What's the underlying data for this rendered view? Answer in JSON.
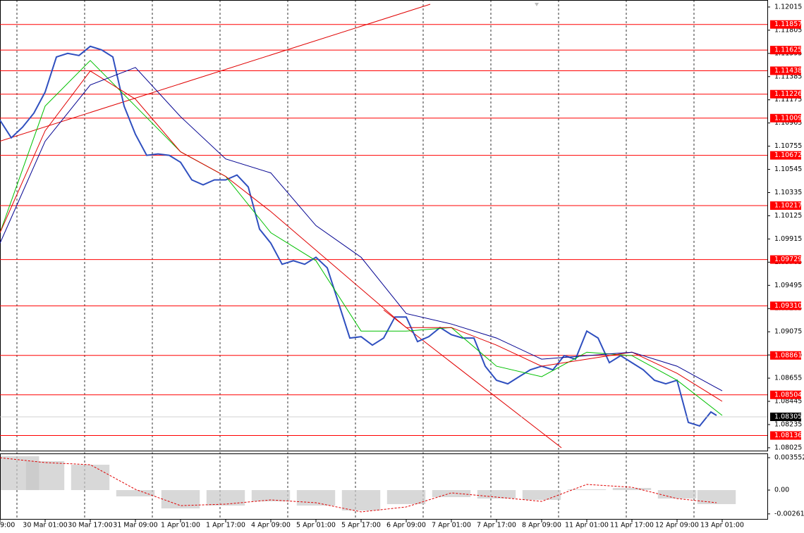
{
  "chart_data": [
    {
      "type": "line",
      "xlim": [
        0,
        272
      ],
      "ylim": [
        1.07999,
        1.12072
      ],
      "yticks": [
        1.12015,
        1.11805,
        1.11595,
        1.11385,
        1.11175,
        1.10965,
        1.10755,
        1.10545,
        1.10335,
        1.10125,
        1.09915,
        1.09705,
        1.09495,
        1.09285,
        1.09075,
        1.08865,
        1.08655,
        1.08445,
        1.08235,
        1.08025
      ],
      "xticks": [
        {
          "value": 0,
          "label": "9:00"
        },
        {
          "value": 16,
          "label": "30 Mar 01:00"
        },
        {
          "value": 32,
          "label": "30 Mar 17:00"
        },
        {
          "value": 48,
          "label": "31 Mar 09:00"
        },
        {
          "value": 64,
          "label": "1 Apr 01:00"
        },
        {
          "value": 80,
          "label": "1 Apr 17:00"
        },
        {
          "value": 96,
          "label": "4 Apr 09:00"
        },
        {
          "value": 112,
          "label": "5 Apr 01:00"
        },
        {
          "value": 128,
          "label": "5 Apr 17:00"
        },
        {
          "value": 144,
          "label": "6 Apr 09:00"
        },
        {
          "value": 160,
          "label": "7 Apr 01:00"
        },
        {
          "value": 176,
          "label": "7 Apr 17:00"
        },
        {
          "value": 192,
          "label": "8 Apr 09:00"
        },
        {
          "value": 208,
          "label": "11 Apr 01:00"
        },
        {
          "value": 224,
          "label": "11 Apr 17:00"
        },
        {
          "value": 240,
          "label": "12 Apr 09:00"
        },
        {
          "value": 256,
          "label": "13 Apr 01:00"
        }
      ],
      "vgrid": [
        6,
        30,
        54,
        78,
        102,
        126,
        150,
        174,
        198,
        222,
        246
      ],
      "series": [
        {
          "color": "#2f4fbf",
          "width": 2,
          "x": [
            0,
            4,
            8,
            12,
            16,
            20,
            24,
            28,
            32,
            36,
            40,
            44,
            48,
            52,
            56,
            60,
            64,
            68,
            72,
            76,
            80,
            84,
            88,
            92,
            96,
            100,
            104,
            108,
            112,
            116,
            120,
            124,
            128,
            132,
            136,
            140,
            144,
            148,
            152,
            156,
            160,
            164,
            168,
            172,
            176,
            180,
            184,
            188,
            192,
            196,
            200,
            204,
            208,
            212,
            216,
            220,
            224,
            228,
            232,
            236,
            240,
            244,
            248,
            252,
            254
          ],
          "values": [
            1.1099,
            1.10831,
            1.10927,
            1.11054,
            1.11245,
            1.11563,
            1.11595,
            1.11576,
            1.11659,
            1.11627,
            1.11563,
            1.11118,
            1.10863,
            1.10672,
            1.10685,
            1.10672,
            1.10609,
            1.1045,
            1.10405,
            1.1045,
            1.1045,
            1.10494,
            1.10386,
            1.10004,
            1.09877,
            1.09686,
            1.09718,
            1.09686,
            1.09749,
            1.09654,
            1.09336,
            1.09018,
            1.0903,
            1.08954,
            1.09018,
            1.09209,
            1.09209,
            1.08986,
            1.0903,
            1.09113,
            1.09049,
            1.09018,
            1.09018,
            1.08763,
            1.08636,
            1.08604,
            1.08668,
            1.08731,
            1.08763,
            1.08731,
            1.08859,
            1.08827,
            1.09081,
            1.09018,
            1.08795,
            1.08859,
            1.08795,
            1.08731,
            1.08636,
            1.08604,
            1.08636,
            1.08254,
            1.08222,
            1.08349,
            1.08318
          ]
        },
        {
          "color": "#00c000",
          "width": 1,
          "x": [
            0,
            16,
            32,
            48,
            64,
            80,
            96,
            112,
            128,
            144,
            160,
            176,
            192,
            208,
            224,
            240,
            256
          ],
          "values": [
            1.09972,
            1.11118,
            1.11531,
            1.11118,
            1.10704,
            1.10481,
            1.09972,
            1.09718,
            1.09081,
            1.09081,
            1.09113,
            1.08763,
            1.08668,
            1.0889,
            1.08859,
            1.08636,
            1.08318
          ]
        },
        {
          "color": "#e00000",
          "width": 1,
          "x": [
            0,
            16,
            32,
            48,
            64,
            80,
            96,
            112,
            128,
            144,
            160,
            176,
            192,
            208,
            224,
            240,
            256
          ],
          "values": [
            1.09972,
            1.10895,
            1.11436,
            1.11181,
            1.10704,
            1.10481,
            1.10163,
            1.09813,
            1.09463,
            1.09113,
            1.09113,
            1.08954,
            1.08763,
            1.08827,
            1.0889,
            1.08699,
            1.08445
          ]
        },
        {
          "color": "#000090",
          "width": 1,
          "x": [
            0,
            16,
            32,
            48,
            64,
            80,
            96,
            112,
            128,
            144,
            160,
            176,
            192,
            208,
            224,
            240,
            256
          ],
          "values": [
            1.09877,
            1.108,
            1.11309,
            1.11468,
            1.11022,
            1.1064,
            1.10513,
            1.10036,
            1.09749,
            1.0924,
            1.09145,
            1.09018,
            1.08827,
            1.08859,
            1.0889,
            1.08763,
            1.0854
          ]
        }
      ],
      "trendlines": [
        {
          "color": "#e00000",
          "x": [
            0,
            152.5
          ],
          "values": [
            1.108,
            1.1204
          ]
        },
        {
          "color": "#e00000",
          "x": [
            136,
            199
          ],
          "values": [
            1.09272,
            1.08025
          ]
        }
      ],
      "levels": {
        "color": "#ff0000",
        "values": [
          1.11857,
          1.11625,
          1.11438,
          1.11226,
          1.11009,
          1.10672,
          1.10217,
          1.09729,
          1.0931,
          1.08861,
          1.08504,
          1.08136
        ],
        "value_labels": [
          "1.11857",
          "1.11625",
          "1.11438",
          "1.11226",
          "1.11009",
          "1.10672",
          "1.10217",
          "1.09729",
          "1.09310",
          "1.08861",
          "1.08504",
          "1.08136"
        ]
      },
      "last_price": 1.08305
    },
    {
      "type": "bar",
      "xlim": [
        0,
        272
      ],
      "ylim": [
        -0.00324,
        0.00394
      ],
      "yticks": [
        0.003552,
        {
          "value": 0,
          "label": "0.00"
        },
        -0.002611
      ],
      "x": [
        0,
        16,
        32,
        48,
        64,
        80,
        96,
        112,
        128,
        144,
        160,
        176,
        192,
        208,
        224,
        240,
        254
      ],
      "values": [
        0.00371,
        0.00317,
        0.00278,
        -0.00069,
        -0.00201,
        -0.0017,
        -0.00124,
        -0.0017,
        -0.00224,
        -0.00154,
        -0.00077,
        -0.00093,
        -0.00108,
        8e-05,
        0.00023,
        -0.00093,
        -0.00154
      ],
      "color": "#c8c8c8",
      "signal": {
        "color": "#e00000",
        "values": [
          0.00355,
          0.00301,
          0.00278,
          8e-05,
          -0.0017,
          -0.00154,
          -0.00108,
          -0.00139,
          -0.00239,
          -0.00185,
          -0.00031,
          -0.00077,
          -0.00124,
          0.00062,
          0.00031,
          -0.00093,
          -0.00139
        ]
      }
    }
  ]
}
